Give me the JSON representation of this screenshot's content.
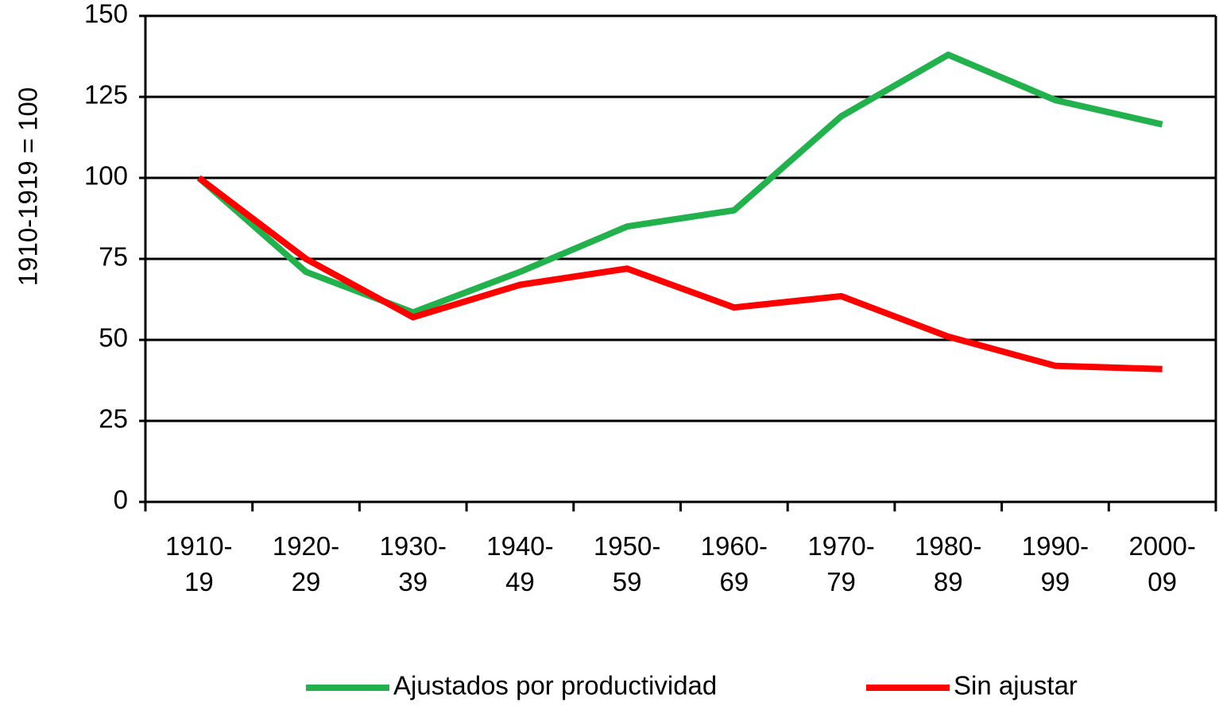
{
  "chart_data": {
    "type": "line",
    "y_label": "1910-1919 = 100",
    "categories": [
      "1910-19",
      "1920-29",
      "1930-39",
      "1940-49",
      "1950-59",
      "1960-69",
      "1970-79",
      "1980-89",
      "1990-99",
      "2000-09"
    ],
    "series": [
      {
        "name": "Ajustados por productividad",
        "color": "#22b14c",
        "values": [
          100,
          71,
          58.5,
          71,
          85,
          90,
          119,
          138,
          124,
          116.5
        ]
      },
      {
        "name": "Sin ajustar",
        "color": "#ff0000",
        "values": [
          100,
          75,
          57,
          67,
          72,
          60,
          63.5,
          51,
          42,
          41
        ]
      }
    ],
    "ylim": [
      0,
      150
    ],
    "yticks": [
      0,
      25,
      50,
      75,
      100,
      125,
      150
    ],
    "grid": true,
    "legend": "bottom"
  }
}
